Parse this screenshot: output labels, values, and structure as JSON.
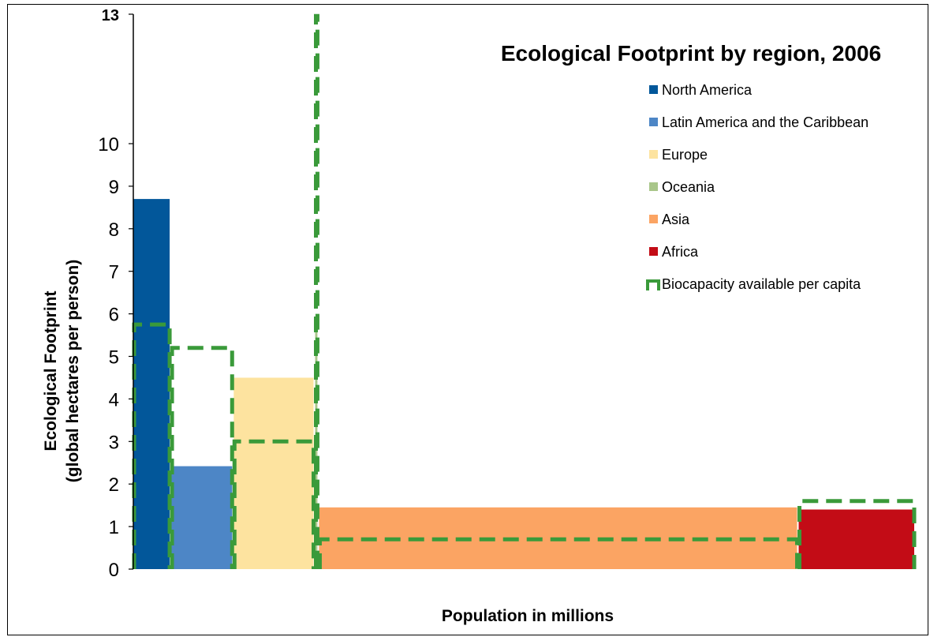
{
  "chart_data": {
    "type": "variable-width bar",
    "title": "Ecological Footprint by region, 2006",
    "xlabel": "Population in millions",
    "ylabel_line1": "Ecological Footprint",
    "ylabel_line2": "(global hectares per person)",
    "ylim": [
      0,
      13
    ],
    "yticks": [
      0,
      1,
      2,
      3,
      4,
      5,
      6,
      7,
      8,
      9,
      10
    ],
    "ytick_top": 13,
    "grid": false,
    "legend_position": "top-right",
    "regions": [
      {
        "name": "North America",
        "population": 340,
        "footprint": 8.7,
        "biocapacity": 5.75,
        "color": "#02579a"
      },
      {
        "name": "Latin America and the Caribbean",
        "population": 560,
        "footprint": 2.42,
        "biocapacity": 5.2,
        "color": "#4d86c6"
      },
      {
        "name": "Europe",
        "population": 730,
        "footprint": 4.5,
        "biocapacity": 3.0,
        "color": "#fde39f"
      },
      {
        "name": "Oceania",
        "population": 35,
        "footprint": 5.9,
        "biocapacity": 13.0,
        "color": "#a9c68a"
      },
      {
        "name": "Asia",
        "population": 4300,
        "footprint": 1.45,
        "biocapacity": 0.7,
        "color": "#fba463"
      },
      {
        "name": "Africa",
        "population": 1050,
        "footprint": 1.4,
        "biocapacity": 1.6,
        "color": "#c30c16"
      }
    ],
    "biocapacity_series": {
      "name": "Biocapacity available per capita",
      "color": "#3a9a3a"
    }
  }
}
